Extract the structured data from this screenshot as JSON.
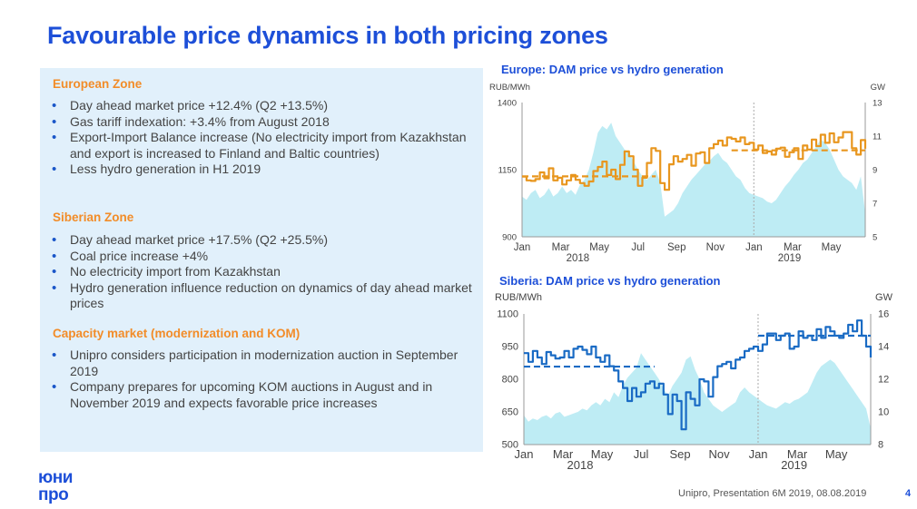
{
  "title": "Favourable price dynamics in both pricing zones",
  "panel": {
    "sections": [
      {
        "heading": "European Zone",
        "bullets": [
          "Day ahead market price +12.4% (Q2 +13.5%)",
          "Gas tariff indexation: +3.4% from August 2018",
          "Export-Import Balance increase (No electricity import from Kazakhstan and export is increased to Finland and Baltic countries)",
          "Less hydro generation in H1 2019"
        ]
      },
      {
        "heading": "Siberian Zone",
        "bullets": [
          "Day ahead market price +17.5% (Q2 +25.5%)",
          "Coal price increase +4%",
          "No electricity import from Kazakhstan",
          "Hydro generation influence reduction on dynamics of day ahead market prices"
        ]
      },
      {
        "heading": "Capacity market (modernization and KOM)",
        "bullets": [
          "Unipro considers participation in modernization auction in September 2019",
          "Company prepares for upcoming KOM auctions in August and in November 2019 and expects favorable price increases"
        ]
      }
    ]
  },
  "logo": {
    "line1": "юни",
    "line2": "про"
  },
  "footer": {
    "text": "Unipro, Presentation 6M 2019, 08.08.2019",
    "page": "4"
  },
  "colors": {
    "title": "#1d4fd8",
    "heading": "#f28c28",
    "europe_line": "#e8961e",
    "siberia_line": "#1a6bc4",
    "hydro_area": "#a8e6f0"
  },
  "chart_data": [
    {
      "type": "line",
      "title": "Europe: DAM price vs hydro generation",
      "ylabel": "RUB/MWh",
      "y2label": "GW",
      "ylim": [
        900,
        1400
      ],
      "yticks": [
        900,
        1150,
        1400
      ],
      "y2lim": [
        5,
        13
      ],
      "y2ticks": [
        5,
        7,
        9,
        11,
        13
      ],
      "xticks": [
        "Jan",
        "Mar",
        "May",
        "Jul",
        "Sep",
        "Nov",
        "Jan",
        "Mar",
        "May"
      ],
      "year_labels": [
        "2018",
        "2019"
      ],
      "weeks": 78,
      "divider_week": 52,
      "series": [
        {
          "kind": "line",
          "values": [
            1124,
            1110,
            1108,
            1115,
            1140,
            1118,
            1155,
            1110,
            1120,
            1095,
            1110,
            1130,
            1112,
            1100,
            1090,
            1106,
            1145,
            1160,
            1180,
            1130,
            1150,
            1115,
            1168,
            1218,
            1200,
            1150,
            1090,
            1120,
            1175,
            1230,
            1220,
            1100,
            1075,
            1170,
            1200,
            1180,
            1190,
            1205,
            1165,
            1210,
            1215,
            1175,
            1230,
            1245,
            1258,
            1240,
            1270,
            1265,
            1255,
            1270,
            1245,
            1250,
            1225,
            1240,
            1212,
            1218,
            1206,
            1228,
            1232,
            1198,
            1215,
            1230,
            1190,
            1240,
            1225,
            1262,
            1238,
            1280,
            1250,
            1285,
            1252,
            1270,
            1290,
            1290,
            1230,
            1206,
            1260,
            1228
          ]
        },
        {
          "kind": "dashed",
          "values": [
            {
              "week": 0,
              "value": 1125
            },
            {
              "week": 30,
              "value": 1125
            },
            {
              "week": 47,
              "value": 1222
            },
            {
              "week": 77,
              "value": 1222
            }
          ]
        },
        {
          "kind": "area",
          "values": [
            7.4,
            7.2,
            7.6,
            7.8,
            7.3,
            7.5,
            7.9,
            7.4,
            7.6,
            8.0,
            7.6,
            7.8,
            7.5,
            8.1,
            8.4,
            9.0,
            10.0,
            11.2,
            11.6,
            11.4,
            11.8,
            11.0,
            10.6,
            10.2,
            10.0,
            9.5,
            9.0,
            8.6,
            8.4,
            8.7,
            9.0,
            8.2,
            6.2,
            6.4,
            6.6,
            7.0,
            7.6,
            8.0,
            8.4,
            8.7,
            9.0,
            9.3,
            9.5,
            9.8,
            10.0,
            9.6,
            9.4,
            9.0,
            8.6,
            8.4,
            7.9,
            7.6,
            7.5,
            7.4,
            7.3,
            7.1,
            7.0,
            7.2,
            7.6,
            8.0,
            8.3,
            8.7,
            9.0,
            9.4,
            9.6,
            10.0,
            10.4,
            10.8,
            10.6,
            10.2,
            9.6,
            9.0,
            8.6,
            8.4,
            8.2,
            7.8,
            8.6,
            6.4
          ]
        }
      ]
    },
    {
      "type": "line",
      "title": "Siberia: DAM price vs hydro generation",
      "ylabel": "RUB/MWh",
      "y2label": "GW",
      "ylim": [
        500,
        1100
      ],
      "yticks": [
        500,
        650,
        800,
        950,
        1100
      ],
      "y2lim": [
        8,
        16
      ],
      "y2ticks": [
        8,
        10,
        12,
        14,
        16
      ],
      "xticks": [
        "Jan",
        "Mar",
        "May",
        "Jul",
        "Sep",
        "Nov",
        "Jan",
        "Mar",
        "May"
      ],
      "year_labels": [
        "2018",
        "2019"
      ],
      "weeks": 78,
      "divider_week": 52,
      "series": [
        {
          "kind": "line",
          "values": [
            920,
            880,
            930,
            900,
            870,
            925,
            910,
            895,
            900,
            930,
            900,
            940,
            950,
            935,
            915,
            950,
            900,
            880,
            910,
            860,
            840,
            790,
            760,
            700,
            760,
            720,
            740,
            780,
            790,
            760,
            780,
            730,
            640,
            730,
            700,
            570,
            740,
            710,
            680,
            800,
            790,
            720,
            810,
            860,
            870,
            880,
            850,
            890,
            900,
            930,
            940,
            950,
            930,
            960,
            1010,
            1010,
            980,
            1000,
            1010,
            940,
            950,
            1020,
            990,
            1000,
            980,
            1030,
            990,
            1040,
            1020,
            1000,
            990,
            1010,
            1050,
            1020,
            1070,
            1000,
            950,
            900
          ]
        },
        {
          "kind": "dashed",
          "values": [
            {
              "week": 0,
              "value": 858
            },
            {
              "week": 29,
              "value": 858
            },
            {
              "week": 52,
              "value": 1000
            },
            {
              "week": 77,
              "value": 1000
            }
          ]
        },
        {
          "kind": "area",
          "values": [
            9.8,
            9.4,
            9.6,
            9.5,
            9.7,
            9.8,
            9.6,
            9.9,
            10.0,
            9.7,
            9.8,
            9.9,
            10.0,
            10.2,
            10.1,
            10.4,
            10.6,
            10.4,
            10.8,
            10.6,
            11.2,
            10.9,
            11.6,
            12.1,
            12.4,
            12.7,
            13.6,
            13.2,
            12.8,
            12.4,
            12.0,
            11.4,
            11.0,
            11.6,
            12.0,
            12.4,
            13.2,
            13.4,
            12.6,
            12.0,
            11.2,
            10.8,
            10.4,
            10.2,
            10.0,
            10.2,
            10.4,
            10.6,
            11.2,
            11.5,
            11.2,
            11.0,
            10.8,
            10.6,
            10.4,
            10.3,
            10.2,
            10.4,
            10.6,
            10.5,
            10.7,
            10.8,
            11.0,
            11.2,
            11.8,
            12.4,
            12.8,
            13.0,
            13.2,
            13.0,
            12.6,
            12.2,
            11.8,
            11.4,
            11.0,
            10.6,
            10.2,
            9.0
          ]
        }
      ]
    }
  ]
}
